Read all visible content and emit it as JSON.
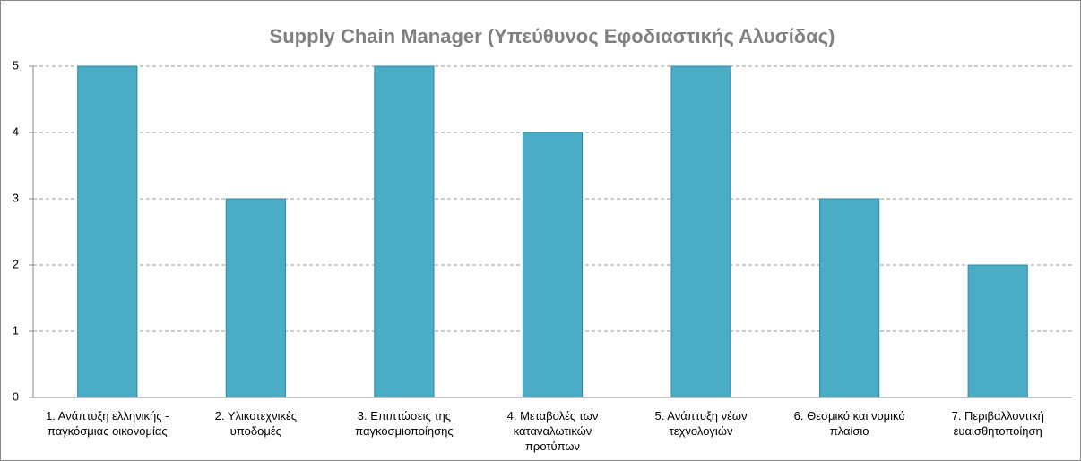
{
  "chart_data": {
    "type": "bar",
    "title": "Supply Chain Manager (Υπεύθυνος Εφοδιαστικής Αλυσίδας)",
    "categories": [
      "1. Ανάπτυξη ελληνικής - παγκόσμιας οικονομίας",
      "2. Υλικοτεχνικές υποδομές",
      "3. Επιπτώσεις της παγκοσμιοποίησης",
      "4. Μεταβολές των καταναλωτικών προτύπων",
      "5. Ανάπτυξη νέων τεχνολογιών",
      "6. Θεσμικό και νομικό πλαίσιο",
      "7. Περιβαλλοντική ευαισθητοποίηση"
    ],
    "values": [
      5,
      3,
      5,
      4,
      5,
      3,
      2
    ],
    "color": "#4bacc6",
    "ylim": [
      0,
      5
    ],
    "yticks": [
      0,
      1,
      2,
      3,
      4,
      5
    ],
    "grid": true
  }
}
